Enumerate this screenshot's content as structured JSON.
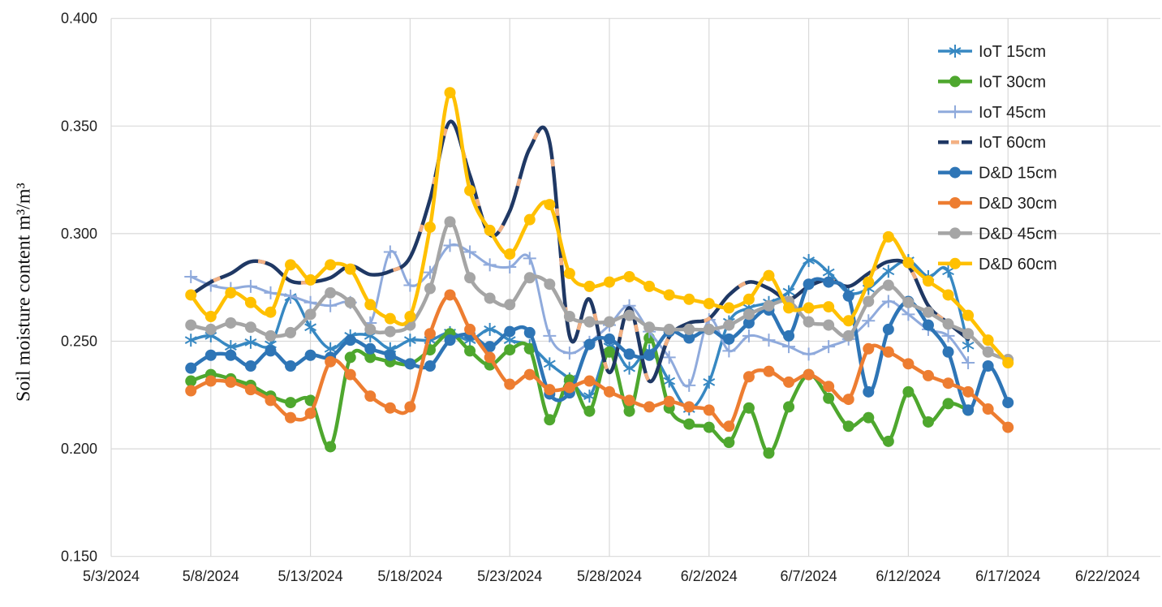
{
  "figure": {
    "background_color": "#FFFFFF",
    "gridline_color": "#D9D9D9",
    "text_color": "#1F1F1F"
  },
  "chart_data": {
    "type": "line",
    "title": "",
    "xlabel": "",
    "ylabel": "Soil moisture content m³/m³",
    "ylim": [
      0.15,
      0.4
    ],
    "y_tick_step": 0.05,
    "y_ticks": [
      "0.400",
      "0.350",
      "0.300",
      "0.250",
      "0.200",
      "0.150"
    ],
    "x_ticks": [
      "5/3/2024",
      "5/8/2024",
      "5/13/2024",
      "5/18/2024",
      "5/23/2024",
      "5/28/2024",
      "6/2/2024",
      "6/7/2024",
      "6/12/2024",
      "6/17/2024",
      "6/22/2024"
    ],
    "grid": true,
    "legend_position": "top-right",
    "dates": [
      "5/7/2024",
      "5/8/2024",
      "5/9/2024",
      "5/10/2024",
      "5/11/2024",
      "5/12/2024",
      "5/13/2024",
      "5/14/2024",
      "5/15/2024",
      "5/16/2024",
      "5/17/2024",
      "5/18/2024",
      "5/19/2024",
      "5/20/2024",
      "5/21/2024",
      "5/22/2024",
      "5/23/2024",
      "5/24/2024",
      "5/25/2024",
      "5/26/2024",
      "5/27/2024",
      "5/28/2024",
      "5/29/2024",
      "5/30/2024",
      "5/31/2024",
      "6/1/2024",
      "6/2/2024",
      "6/3/2024",
      "6/4/2024",
      "6/5/2024",
      "6/6/2024",
      "6/7/2024",
      "6/8/2024",
      "6/9/2024",
      "6/10/2024",
      "6/11/2024",
      "6/12/2024",
      "6/13/2024",
      "6/14/2024",
      "6/15/2024",
      "6/16/2024",
      "6/17/2024"
    ],
    "series": [
      {
        "name": "IoT 15cm",
        "color": "#3788C2",
        "marker": "star6",
        "line_width": 3.5,
        "values": [
          0.2505,
          0.2525,
          0.2475,
          0.2495,
          0.2485,
          0.2705,
          0.2565,
          0.2465,
          0.2525,
          0.2525,
          0.2465,
          0.2505,
          0.2505,
          0.254,
          0.2505,
          0.2555,
          0.2505,
          0.248,
          0.2395,
          0.2325,
          0.2245,
          0.2475,
          0.2375,
          0.2455,
          0.2315,
          0.2185,
          0.231,
          0.259,
          0.2655,
          0.268,
          0.273,
          0.2875,
          0.282,
          0.2725,
          0.2745,
          0.2825,
          0.2875,
          0.28,
          0.2825,
          0.248,
          null,
          null
        ]
      },
      {
        "name": "IoT 30cm",
        "color": "#4EA72E",
        "marker": "circle",
        "line_width": 4.5,
        "values": [
          0.2315,
          0.2345,
          0.2325,
          0.2295,
          0.2245,
          0.2215,
          0.2225,
          0.201,
          0.2425,
          0.2425,
          0.2405,
          0.2395,
          0.246,
          0.2535,
          0.2455,
          0.239,
          0.246,
          0.2465,
          0.2135,
          0.232,
          0.2175,
          0.245,
          0.2175,
          0.2515,
          0.219,
          0.2115,
          0.21,
          0.203,
          0.219,
          0.198,
          0.2195,
          0.2345,
          0.2235,
          0.2105,
          0.2145,
          0.2035,
          0.2265,
          0.2125,
          0.221,
          0.218,
          null,
          null
        ]
      },
      {
        "name": "IoT 45cm",
        "color": "#8FAADC",
        "marker": "plus",
        "line_width": 3,
        "values": [
          0.28,
          0.276,
          0.2745,
          0.2755,
          0.2725,
          0.271,
          0.268,
          0.2665,
          0.268,
          0.2585,
          0.2915,
          0.276,
          0.282,
          0.2945,
          0.2915,
          0.2855,
          0.2845,
          0.2885,
          0.2525,
          0.2445,
          0.2495,
          0.2575,
          0.2665,
          0.2545,
          0.2425,
          0.2295,
          0.26,
          0.2455,
          0.2525,
          0.2505,
          0.2475,
          0.244,
          0.2475,
          0.251,
          0.2595,
          0.2685,
          0.2625,
          0.2555,
          0.2525,
          0.24,
          null,
          null
        ]
      },
      {
        "name": "IoT 60cm",
        "color": "#1F3864",
        "marker": "none",
        "line_width": 4.5,
        "dash_overlay_color": "#F4B183",
        "values": [
          0.2715,
          0.2775,
          0.2815,
          0.287,
          0.2855,
          0.278,
          0.2775,
          0.2795,
          0.285,
          0.281,
          0.2825,
          0.289,
          0.316,
          0.352,
          0.327,
          0.2995,
          0.3105,
          0.3395,
          0.3425,
          0.2525,
          0.2695,
          0.2355,
          0.2655,
          0.2315,
          0.252,
          0.2585,
          0.2605,
          0.2715,
          0.2775,
          0.2745,
          0.2695,
          0.2755,
          0.2785,
          0.2755,
          0.2815,
          0.287,
          0.285,
          0.2665,
          0.2585,
          0.251,
          null,
          null
        ]
      },
      {
        "name": "D&D 15cm",
        "color": "#2E75B6",
        "marker": "circle",
        "line_width": 4.5,
        "values": [
          0.2375,
          0.2435,
          0.2435,
          0.2385,
          0.2455,
          0.2385,
          0.2435,
          0.2425,
          0.2505,
          0.2465,
          0.2435,
          0.2395,
          0.2385,
          0.2505,
          0.253,
          0.2475,
          0.2545,
          0.254,
          0.2255,
          0.226,
          0.2485,
          0.251,
          0.244,
          0.2435,
          0.2545,
          0.2515,
          0.2555,
          0.251,
          0.2585,
          0.2645,
          0.2525,
          0.2765,
          0.2775,
          0.271,
          0.2265,
          0.2555,
          0.2685,
          0.2575,
          0.245,
          0.218,
          0.2385,
          0.2215
        ]
      },
      {
        "name": "D&D 30cm",
        "color": "#ED7D31",
        "marker": "circle",
        "line_width": 4.5,
        "values": [
          0.227,
          0.2315,
          0.231,
          0.2275,
          0.2225,
          0.2145,
          0.2165,
          0.2405,
          0.2345,
          0.2245,
          0.219,
          0.2195,
          0.2535,
          0.2715,
          0.2555,
          0.2425,
          0.23,
          0.2345,
          0.2275,
          0.2285,
          0.2315,
          0.2265,
          0.2225,
          0.2195,
          0.222,
          0.2195,
          0.218,
          0.2105,
          0.2335,
          0.236,
          0.231,
          0.2345,
          0.229,
          0.223,
          0.2465,
          0.245,
          0.2395,
          0.234,
          0.2305,
          0.2265,
          0.2185,
          0.21
        ]
      },
      {
        "name": "D&D 45cm",
        "color": "#A5A5A5",
        "marker": "circle",
        "line_width": 4.5,
        "values": [
          0.2575,
          0.2555,
          0.2585,
          0.2565,
          0.2525,
          0.254,
          0.2625,
          0.2725,
          0.268,
          0.2555,
          0.2545,
          0.2575,
          0.2745,
          0.3055,
          0.2795,
          0.27,
          0.267,
          0.2795,
          0.2765,
          0.2615,
          0.259,
          0.259,
          0.262,
          0.2565,
          0.2555,
          0.2555,
          0.2555,
          0.2575,
          0.2625,
          0.2665,
          0.2685,
          0.259,
          0.2575,
          0.2525,
          0.2685,
          0.276,
          0.268,
          0.2635,
          0.258,
          0.2535,
          0.245,
          0.2415
        ]
      },
      {
        "name": "D&D 60cm",
        "color": "#FFC000",
        "marker": "circle",
        "line_width": 4.5,
        "values": [
          0.2715,
          0.2615,
          0.2725,
          0.268,
          0.2635,
          0.2855,
          0.2785,
          0.2855,
          0.2835,
          0.267,
          0.2605,
          0.2615,
          0.303,
          0.3655,
          0.32,
          0.3015,
          0.2905,
          0.3065,
          0.3135,
          0.2815,
          0.2755,
          0.2775,
          0.28,
          0.2755,
          0.2715,
          0.2695,
          0.2675,
          0.2655,
          0.2695,
          0.2805,
          0.2655,
          0.2655,
          0.266,
          0.2595,
          0.2775,
          0.2985,
          0.2865,
          0.278,
          0.2715,
          0.262,
          0.2505,
          0.24
        ]
      }
    ]
  }
}
